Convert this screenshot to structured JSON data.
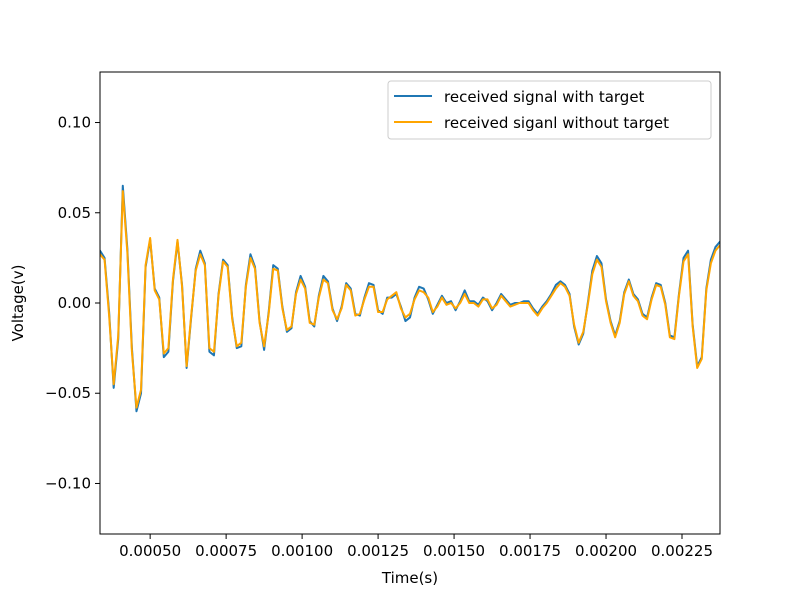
{
  "chart_data": {
    "type": "line",
    "title": "",
    "xlabel": "Time(s)",
    "ylabel": "Voltage(v)",
    "xlim": [
      0.000335,
      0.002375
    ],
    "ylim": [
      -0.128,
      0.128
    ],
    "grid": false,
    "legend_position": "top-right",
    "x_ticks": [
      {
        "value": 0.0005,
        "label": "0.00050"
      },
      {
        "value": 0.00075,
        "label": "0.00075"
      },
      {
        "value": 0.001,
        "label": "0.00100"
      },
      {
        "value": 0.00125,
        "label": "0.00125"
      },
      {
        "value": 0.0015,
        "label": "0.00150"
      },
      {
        "value": 0.00175,
        "label": "0.00175"
      },
      {
        "value": 0.002,
        "label": "0.00200"
      },
      {
        "value": 0.00225,
        "label": "0.00225"
      }
    ],
    "y_ticks": [
      {
        "value": 0.1,
        "label": "0.10"
      },
      {
        "value": 0.05,
        "label": "0.05"
      },
      {
        "value": 0.0,
        "label": "0.00"
      },
      {
        "value": -0.05,
        "label": "−0.05"
      },
      {
        "value": -0.1,
        "label": "−0.10"
      }
    ],
    "series": [
      {
        "name": "received signal with target",
        "color": "#1f77b4",
        "points": [
          [
            0.000335,
            0.029
          ],
          [
            0.00035,
            0.025
          ],
          [
            0.000365,
            -0.005
          ],
          [
            0.00038,
            -0.047
          ],
          [
            0.000395,
            -0.02
          ],
          [
            0.00041,
            0.065
          ],
          [
            0.000425,
            0.03
          ],
          [
            0.00044,
            -0.025
          ],
          [
            0.000455,
            -0.06
          ],
          [
            0.00047,
            -0.05
          ],
          [
            0.000485,
            0.02
          ],
          [
            0.0005,
            0.035
          ],
          [
            0.000515,
            0.008
          ],
          [
            0.00053,
            0.003
          ],
          [
            0.000545,
            -0.03
          ],
          [
            0.00056,
            -0.027
          ],
          [
            0.000575,
            0.012
          ],
          [
            0.00059,
            0.034
          ],
          [
            0.000605,
            0.01
          ],
          [
            0.00062,
            -0.036
          ],
          [
            0.000635,
            -0.008
          ],
          [
            0.00065,
            0.019
          ],
          [
            0.000665,
            0.029
          ],
          [
            0.00068,
            0.022
          ],
          [
            0.000695,
            -0.027
          ],
          [
            0.00071,
            -0.029
          ],
          [
            0.000725,
            0.005
          ],
          [
            0.00074,
            0.024
          ],
          [
            0.000755,
            0.021
          ],
          [
            0.00077,
            -0.008
          ],
          [
            0.000785,
            -0.025
          ],
          [
            0.0008,
            -0.024
          ],
          [
            0.000815,
            0.01
          ],
          [
            0.00083,
            0.027
          ],
          [
            0.000845,
            0.02
          ],
          [
            0.00086,
            -0.01
          ],
          [
            0.000875,
            -0.026
          ],
          [
            0.00089,
            -0.005
          ],
          [
            0.000905,
            0.021
          ],
          [
            0.00092,
            0.019
          ],
          [
            0.000935,
            -0.002
          ],
          [
            0.00095,
            -0.016
          ],
          [
            0.000965,
            -0.014
          ],
          [
            0.00098,
            0.006
          ],
          [
            0.000995,
            0.015
          ],
          [
            0.00101,
            0.009
          ],
          [
            0.001025,
            -0.01
          ],
          [
            0.00104,
            -0.013
          ],
          [
            0.001055,
            0.004
          ],
          [
            0.00107,
            0.015
          ],
          [
            0.001085,
            0.012
          ],
          [
            0.0011,
            -0.003
          ],
          [
            0.001115,
            -0.01
          ],
          [
            0.00113,
            -0.002
          ],
          [
            0.001145,
            0.011
          ],
          [
            0.00116,
            0.008
          ],
          [
            0.001175,
            -0.006
          ],
          [
            0.00119,
            -0.007
          ],
          [
            0.001205,
            0.003
          ],
          [
            0.00122,
            0.011
          ],
          [
            0.001235,
            0.01
          ],
          [
            0.00125,
            -0.004
          ],
          [
            0.001265,
            -0.006
          ],
          [
            0.00128,
            0.003
          ],
          [
            0.001295,
            0.003
          ],
          [
            0.00131,
            0.005
          ],
          [
            0.001325,
            -0.002
          ],
          [
            0.00134,
            -0.01
          ],
          [
            0.001355,
            -0.008
          ],
          [
            0.00137,
            0.003
          ],
          [
            0.001385,
            0.009
          ],
          [
            0.0014,
            0.008
          ],
          [
            0.001415,
            0.002
          ],
          [
            0.00143,
            -0.006
          ],
          [
            0.001445,
            -0.001
          ],
          [
            0.00146,
            0.004
          ],
          [
            0.001475,
            0.0
          ],
          [
            0.00149,
            0.001
          ],
          [
            0.001505,
            -0.004
          ],
          [
            0.00152,
            0.001
          ],
          [
            0.001535,
            0.007
          ],
          [
            0.00155,
            0.001
          ],
          [
            0.001565,
            0.001
          ],
          [
            0.00158,
            -0.001
          ],
          [
            0.001595,
            0.003
          ],
          [
            0.00161,
            0.001
          ],
          [
            0.001625,
            -0.004
          ],
          [
            0.00164,
            0.0
          ],
          [
            0.001655,
            0.005
          ],
          [
            0.00167,
            0.002
          ],
          [
            0.001685,
            -0.001
          ],
          [
            0.0017,
            0.0
          ],
          [
            0.001715,
            0.0
          ],
          [
            0.00173,
            0.001
          ],
          [
            0.001745,
            0.001
          ],
          [
            0.00176,
            -0.003
          ],
          [
            0.001775,
            -0.006
          ],
          [
            0.00179,
            -0.002
          ],
          [
            0.001805,
            0.001
          ],
          [
            0.00182,
            0.005
          ],
          [
            0.001835,
            0.01
          ],
          [
            0.00185,
            0.012
          ],
          [
            0.001865,
            0.01
          ],
          [
            0.00188,
            0.005
          ],
          [
            0.001895,
            -0.013
          ],
          [
            0.00191,
            -0.023
          ],
          [
            0.001925,
            -0.017
          ],
          [
            0.00194,
            0.0
          ],
          [
            0.001955,
            0.018
          ],
          [
            0.00197,
            0.026
          ],
          [
            0.001985,
            0.022
          ],
          [
            0.002,
            0.002
          ],
          [
            0.002015,
            -0.01
          ],
          [
            0.00203,
            -0.018
          ],
          [
            0.002045,
            -0.01
          ],
          [
            0.00206,
            0.006
          ],
          [
            0.002075,
            0.013
          ],
          [
            0.00209,
            0.005
          ],
          [
            0.002105,
            0.002
          ],
          [
            0.00212,
            -0.006
          ],
          [
            0.002135,
            -0.008
          ],
          [
            0.00215,
            0.003
          ],
          [
            0.002165,
            0.011
          ],
          [
            0.00218,
            0.01
          ],
          [
            0.002195,
            0.0
          ],
          [
            0.00221,
            -0.018
          ],
          [
            0.002225,
            -0.019
          ],
          [
            0.00224,
            0.005
          ],
          [
            0.002255,
            0.025
          ],
          [
            0.00227,
            0.029
          ],
          [
            0.002285,
            -0.012
          ],
          [
            0.0023,
            -0.035
          ],
          [
            0.002315,
            -0.03
          ],
          [
            0.00233,
            0.008
          ],
          [
            0.002345,
            0.024
          ],
          [
            0.00236,
            0.031
          ],
          [
            0.002375,
            0.034
          ]
        ]
      },
      {
        "name": "received siganl without target",
        "color": "#ffa500",
        "points": [
          [
            0.000335,
            0.027
          ],
          [
            0.00035,
            0.024
          ],
          [
            0.000365,
            -0.007
          ],
          [
            0.00038,
            -0.045
          ],
          [
            0.000395,
            -0.018
          ],
          [
            0.00041,
            0.062
          ],
          [
            0.000425,
            0.028
          ],
          [
            0.00044,
            -0.027
          ],
          [
            0.000455,
            -0.058
          ],
          [
            0.00047,
            -0.048
          ],
          [
            0.000485,
            0.021
          ],
          [
            0.0005,
            0.036
          ],
          [
            0.000515,
            0.007
          ],
          [
            0.00053,
            0.002
          ],
          [
            0.000545,
            -0.028
          ],
          [
            0.00056,
            -0.025
          ],
          [
            0.000575,
            0.013
          ],
          [
            0.00059,
            0.035
          ],
          [
            0.000605,
            0.009
          ],
          [
            0.00062,
            -0.035
          ],
          [
            0.000635,
            -0.007
          ],
          [
            0.00065,
            0.018
          ],
          [
            0.000665,
            0.027
          ],
          [
            0.00068,
            0.021
          ],
          [
            0.000695,
            -0.025
          ],
          [
            0.00071,
            -0.027
          ],
          [
            0.000725,
            0.004
          ],
          [
            0.00074,
            0.023
          ],
          [
            0.000755,
            0.02
          ],
          [
            0.00077,
            -0.009
          ],
          [
            0.000785,
            -0.024
          ],
          [
            0.0008,
            -0.022
          ],
          [
            0.000815,
            0.009
          ],
          [
            0.00083,
            0.025
          ],
          [
            0.000845,
            0.019
          ],
          [
            0.00086,
            -0.011
          ],
          [
            0.000875,
            -0.024
          ],
          [
            0.00089,
            -0.006
          ],
          [
            0.000905,
            0.019
          ],
          [
            0.00092,
            0.018
          ],
          [
            0.000935,
            -0.003
          ],
          [
            0.00095,
            -0.015
          ],
          [
            0.000965,
            -0.013
          ],
          [
            0.00098,
            0.005
          ],
          [
            0.000995,
            0.013
          ],
          [
            0.00101,
            0.008
          ],
          [
            0.001025,
            -0.011
          ],
          [
            0.00104,
            -0.012
          ],
          [
            0.001055,
            0.003
          ],
          [
            0.00107,
            0.013
          ],
          [
            0.001085,
            0.011
          ],
          [
            0.0011,
            -0.004
          ],
          [
            0.001115,
            -0.009
          ],
          [
            0.00113,
            -0.003
          ],
          [
            0.001145,
            0.01
          ],
          [
            0.00116,
            0.007
          ],
          [
            0.001175,
            -0.007
          ],
          [
            0.00119,
            -0.006
          ],
          [
            0.001205,
            0.002
          ],
          [
            0.00122,
            0.009
          ],
          [
            0.001235,
            0.009
          ],
          [
            0.00125,
            -0.005
          ],
          [
            0.001265,
            -0.005
          ],
          [
            0.00128,
            0.002
          ],
          [
            0.001295,
            0.004
          ],
          [
            0.00131,
            0.006
          ],
          [
            0.001325,
            -0.003
          ],
          [
            0.00134,
            -0.008
          ],
          [
            0.001355,
            -0.006
          ],
          [
            0.00137,
            0.002
          ],
          [
            0.001385,
            0.007
          ],
          [
            0.0014,
            0.006
          ],
          [
            0.001415,
            0.003
          ],
          [
            0.00143,
            -0.005
          ],
          [
            0.001445,
            -0.002
          ],
          [
            0.00146,
            0.003
          ],
          [
            0.001475,
            -0.001
          ],
          [
            0.00149,
            0.0
          ],
          [
            0.001505,
            -0.003
          ],
          [
            0.00152,
            0.0
          ],
          [
            0.001535,
            0.005
          ],
          [
            0.00155,
            0.0
          ],
          [
            0.001565,
            0.0
          ],
          [
            0.00158,
            -0.002
          ],
          [
            0.001595,
            0.002
          ],
          [
            0.00161,
            0.002
          ],
          [
            0.001625,
            -0.003
          ],
          [
            0.00164,
            -0.001
          ],
          [
            0.001655,
            0.004
          ],
          [
            0.00167,
            0.001
          ],
          [
            0.001685,
            -0.002
          ],
          [
            0.0017,
            -0.001
          ],
          [
            0.001715,
            0.0
          ],
          [
            0.00173,
            0.0
          ],
          [
            0.001745,
            0.0
          ],
          [
            0.00176,
            -0.004
          ],
          [
            0.001775,
            -0.007
          ],
          [
            0.00179,
            -0.003
          ],
          [
            0.001805,
            0.0
          ],
          [
            0.00182,
            0.004
          ],
          [
            0.001835,
            0.008
          ],
          [
            0.00185,
            0.011
          ],
          [
            0.001865,
            0.009
          ],
          [
            0.00188,
            0.004
          ],
          [
            0.001895,
            -0.012
          ],
          [
            0.00191,
            -0.022
          ],
          [
            0.001925,
            -0.016
          ],
          [
            0.00194,
            -0.001
          ],
          [
            0.001955,
            0.016
          ],
          [
            0.00197,
            0.024
          ],
          [
            0.001985,
            0.02
          ],
          [
            0.002,
            0.001
          ],
          [
            0.002015,
            -0.011
          ],
          [
            0.00203,
            -0.019
          ],
          [
            0.002045,
            -0.011
          ],
          [
            0.00206,
            0.005
          ],
          [
            0.002075,
            0.012
          ],
          [
            0.00209,
            0.004
          ],
          [
            0.002105,
            0.001
          ],
          [
            0.00212,
            -0.007
          ],
          [
            0.002135,
            -0.009
          ],
          [
            0.00215,
            0.002
          ],
          [
            0.002165,
            0.01
          ],
          [
            0.00218,
            0.009
          ],
          [
            0.002195,
            -0.001
          ],
          [
            0.00221,
            -0.019
          ],
          [
            0.002225,
            -0.02
          ],
          [
            0.00224,
            0.004
          ],
          [
            0.002255,
            0.023
          ],
          [
            0.00227,
            0.027
          ],
          [
            0.002285,
            -0.013
          ],
          [
            0.0023,
            -0.036
          ],
          [
            0.002315,
            -0.031
          ],
          [
            0.00233,
            0.007
          ],
          [
            0.002345,
            0.022
          ],
          [
            0.00236,
            0.029
          ],
          [
            0.002375,
            0.032
          ]
        ]
      }
    ]
  }
}
